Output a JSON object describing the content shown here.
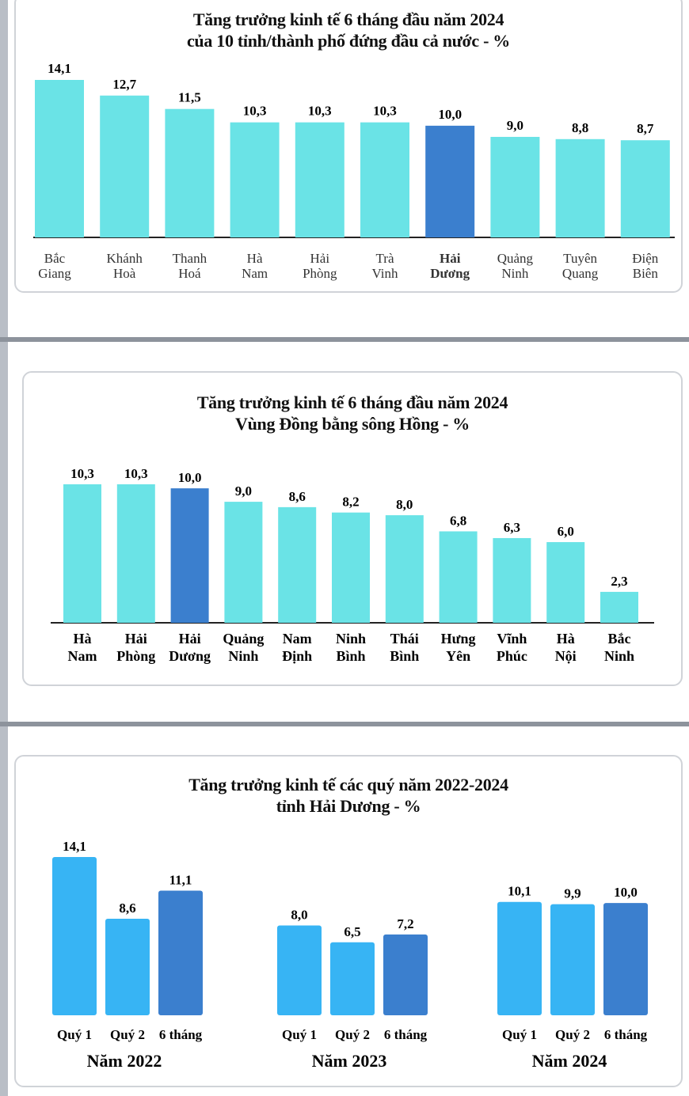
{
  "colors": {
    "bar_light": "#6ae3e6",
    "bar_highlight": "#3b7fce",
    "bar_quarter": "#37b4f4",
    "bar_six_month": "#3b7fce"
  },
  "chart_data": [
    {
      "type": "bar",
      "title": "Tăng trưởng kinh tế 6 tháng đầu năm 2024",
      "subtitle": "của 10 tỉnh/thành phố đứng đầu cả nước  - %",
      "categories": [
        [
          "Bắc",
          "Giang"
        ],
        [
          "Khánh",
          "Hoà"
        ],
        [
          "Thanh",
          "Hoá"
        ],
        [
          "Hà",
          "Nam"
        ],
        [
          "Hải",
          "Phòng"
        ],
        [
          "Trà",
          "Vinh"
        ],
        [
          "Hải",
          "Dương"
        ],
        [
          "Quảng",
          "Ninh"
        ],
        [
          "Tuyên",
          "Quang"
        ],
        [
          "Điện",
          "Biên"
        ]
      ],
      "values": [
        14.1,
        12.7,
        11.5,
        10.3,
        10.3,
        10.3,
        10.0,
        9.0,
        8.8,
        8.7
      ],
      "value_labels": [
        "14,1",
        "12,7",
        "11,5",
        "10,3",
        "10,3",
        "10,3",
        "10,0",
        "9,0",
        "8,8",
        "8,7"
      ],
      "highlight": "Hải Dương",
      "ylim": [
        0,
        14.1
      ]
    },
    {
      "type": "bar",
      "title": "Tăng trưởng kinh tế 6 tháng đầu năm 2024",
      "subtitle": "Vùng Đồng bằng sông Hồng - %",
      "categories": [
        [
          "Hà",
          "Nam"
        ],
        [
          "Hải",
          "Phòng"
        ],
        [
          "Hải",
          "Dương"
        ],
        [
          "Quảng",
          "Ninh"
        ],
        [
          "Nam",
          "Định"
        ],
        [
          "Ninh",
          "Bình"
        ],
        [
          "Thái",
          "Bình"
        ],
        [
          "Hưng",
          "Yên"
        ],
        [
          "Vĩnh",
          "Phúc"
        ],
        [
          "Hà",
          "Nội"
        ],
        [
          "Bắc",
          "Ninh"
        ]
      ],
      "values": [
        10.3,
        10.3,
        10.0,
        9.0,
        8.6,
        8.2,
        8.0,
        6.8,
        6.3,
        6.0,
        2.3
      ],
      "value_labels": [
        "10,3",
        "10,3",
        "10,0",
        "9,0",
        "8,6",
        "8,2",
        "8,0",
        "6,8",
        "6,3",
        "6,0",
        "2,3"
      ],
      "highlight": "Hải Dương",
      "ylim": [
        0,
        10.3
      ]
    },
    {
      "type": "bar",
      "title": "Tăng trưởng kinh tế các quý năm 2022-2024",
      "subtitle": "tỉnh Hải Dương - %",
      "categories": [
        "Quý 1",
        "Quý 2",
        "6 tháng"
      ],
      "groups": [
        {
          "name": "Năm 2022",
          "values": [
            14.1,
            8.6,
            11.1
          ],
          "value_labels": [
            "14,1",
            "8,6",
            "11,1"
          ]
        },
        {
          "name": "Năm 2023",
          "values": [
            8.0,
            6.5,
            7.2
          ],
          "value_labels": [
            "8,0",
            "6,5",
            "7,2"
          ]
        },
        {
          "name": "Năm 2024",
          "values": [
            10.1,
            9.9,
            10.0
          ],
          "value_labels": [
            "10,1",
            "9,9",
            "10,0"
          ]
        }
      ],
      "ylim": [
        0,
        14.1
      ]
    }
  ]
}
